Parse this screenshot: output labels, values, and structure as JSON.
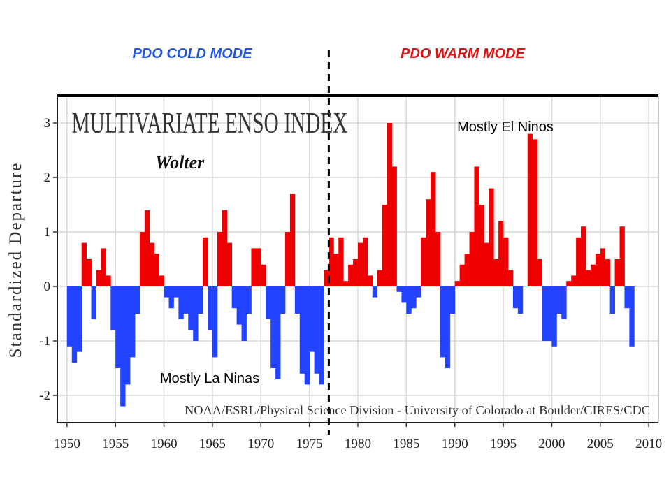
{
  "chart_data": {
    "type": "bar",
    "title": "MULTIVARIATE ENSO INDEX",
    "subtitle": "Wolter",
    "y_label": "Standardized Departure",
    "credit": "NOAA/ESRL/Physical Science Division - University of Colorado at Boulder/CIRES/CDC",
    "annotations": {
      "cold_mode": "PDO COLD MODE",
      "warm_mode": "PDO WARM MODE",
      "el_nino": "Mostly El Ninos",
      "la_nina": "Mostly La Ninas"
    },
    "divider_x": 1977,
    "positive_color": "#ee0000",
    "negative_color": "#2244ff",
    "x": [
      1950,
      1950.5,
      1951,
      1951.5,
      1952,
      1952.5,
      1953,
      1953.5,
      1954,
      1954.5,
      1955,
      1955.5,
      1956,
      1956.5,
      1957,
      1957.5,
      1958,
      1958.5,
      1959,
      1959.5,
      1960,
      1960.5,
      1961,
      1961.5,
      1962,
      1962.5,
      1963,
      1963.5,
      1964,
      1964.5,
      1965,
      1965.5,
      1966,
      1966.5,
      1967,
      1967.5,
      1968,
      1968.5,
      1969,
      1969.5,
      1970,
      1970.5,
      1971,
      1971.5,
      1972,
      1972.5,
      1973,
      1973.5,
      1974,
      1974.5,
      1975,
      1975.5,
      1976,
      1976.5,
      1977,
      1977.5,
      1978,
      1978.5,
      1979,
      1979.5,
      1980,
      1980.5,
      1981,
      1981.5,
      1982,
      1982.5,
      1983,
      1983.5,
      1984,
      1984.5,
      1985,
      1985.5,
      1986,
      1986.5,
      1987,
      1987.5,
      1988,
      1988.5,
      1989,
      1989.5,
      1990,
      1990.5,
      1991,
      1991.5,
      1992,
      1992.5,
      1993,
      1993.5,
      1994,
      1994.5,
      1995,
      1995.5,
      1996,
      1996.5,
      1997,
      1997.5,
      1998,
      1998.5,
      1999,
      1999.5,
      2000,
      2000.5,
      2001,
      2001.5,
      2002,
      2002.5,
      2003,
      2003.5,
      2004,
      2004.5,
      2005,
      2005.5,
      2006,
      2006.5,
      2007,
      2007.5,
      2008
    ],
    "values": [
      -1.1,
      -1.4,
      -1.2,
      0.8,
      0.5,
      -0.6,
      0.3,
      0.7,
      0.2,
      -0.8,
      -1.5,
      -2.2,
      -1.8,
      -1.3,
      -0.5,
      1.0,
      1.4,
      0.8,
      0.6,
      0.2,
      -0.2,
      -0.4,
      -0.2,
      -0.6,
      -0.5,
      -0.8,
      -1.0,
      -0.5,
      0.9,
      -0.8,
      -1.3,
      1.0,
      1.4,
      0.8,
      -0.4,
      -0.7,
      -1.0,
      -0.5,
      0.7,
      0.7,
      0.4,
      -0.6,
      -1.5,
      -1.7,
      -0.5,
      1.0,
      1.7,
      -0.5,
      -1.6,
      -1.8,
      -1.2,
      -1.6,
      -1.8,
      0.3,
      0.9,
      0.6,
      0.9,
      0.1,
      0.4,
      0.5,
      0.8,
      0.9,
      0.2,
      -0.2,
      0.3,
      1.5,
      3.0,
      2.2,
      -0.1,
      -0.3,
      -0.5,
      -0.4,
      -0.2,
      0.9,
      1.6,
      2.1,
      1.0,
      -1.3,
      -1.5,
      -0.5,
      0.1,
      0.4,
      0.6,
      1.0,
      2.2,
      1.5,
      0.8,
      1.8,
      0.5,
      1.2,
      0.9,
      0.3,
      -0.4,
      -0.5,
      0.0,
      2.8,
      2.7,
      0.5,
      -1.0,
      -1.0,
      -1.1,
      -0.5,
      -0.6,
      0.1,
      0.2,
      0.9,
      1.1,
      0.3,
      0.4,
      0.6,
      0.7,
      0.5,
      -0.5,
      0.5,
      1.1,
      -0.4,
      -1.1
    ],
    "xlim": [
      1949,
      2011
    ],
    "ylim": [
      -2.5,
      3.5
    ],
    "xticks": [
      1950,
      1955,
      1960,
      1965,
      1970,
      1975,
      1980,
      1985,
      1990,
      1995,
      2000,
      2005,
      2010
    ],
    "yticks": [
      -2,
      -1,
      0,
      1,
      2,
      3
    ],
    "grid": true
  }
}
